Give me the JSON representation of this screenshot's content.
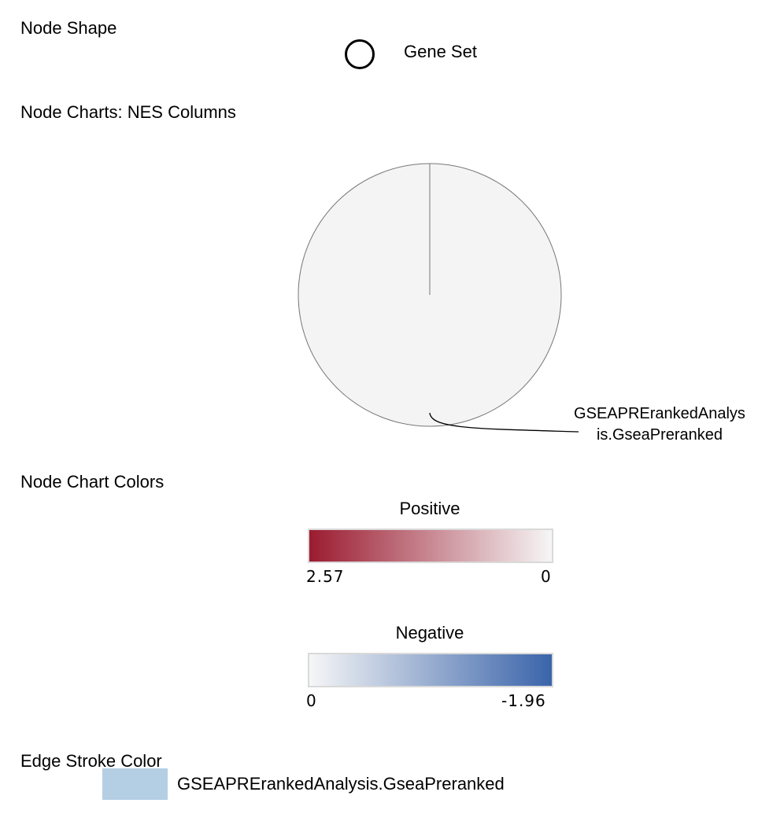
{
  "sections": {
    "node_shape": "Node Shape",
    "node_charts": "Node Charts: NES Columns",
    "node_chart_colors": "Node Chart Colors",
    "edge_stroke_color": "Edge Stroke Color"
  },
  "node_shape": {
    "icon": "circle-outline-icon",
    "label": "Gene Set"
  },
  "node_chart": {
    "label": "GSEAPRErankedAnalysis.GseaPreranked",
    "fill_color": "#f4f4f4",
    "stroke_color": "#777777"
  },
  "chart_colors": {
    "positive": {
      "title": "Positive",
      "max": "2.57",
      "min": "0",
      "color_start": "#9b1b30",
      "color_end": "#f6f6f6"
    },
    "negative": {
      "title": "Negative",
      "max": "0",
      "min": "-1.96",
      "color_start": "#f6f6f6",
      "color_end": "#3a64aa"
    }
  },
  "edge_stroke": {
    "color": "#b4cfe4",
    "label": "GSEAPRErankedAnalysis.GseaPreranked"
  }
}
